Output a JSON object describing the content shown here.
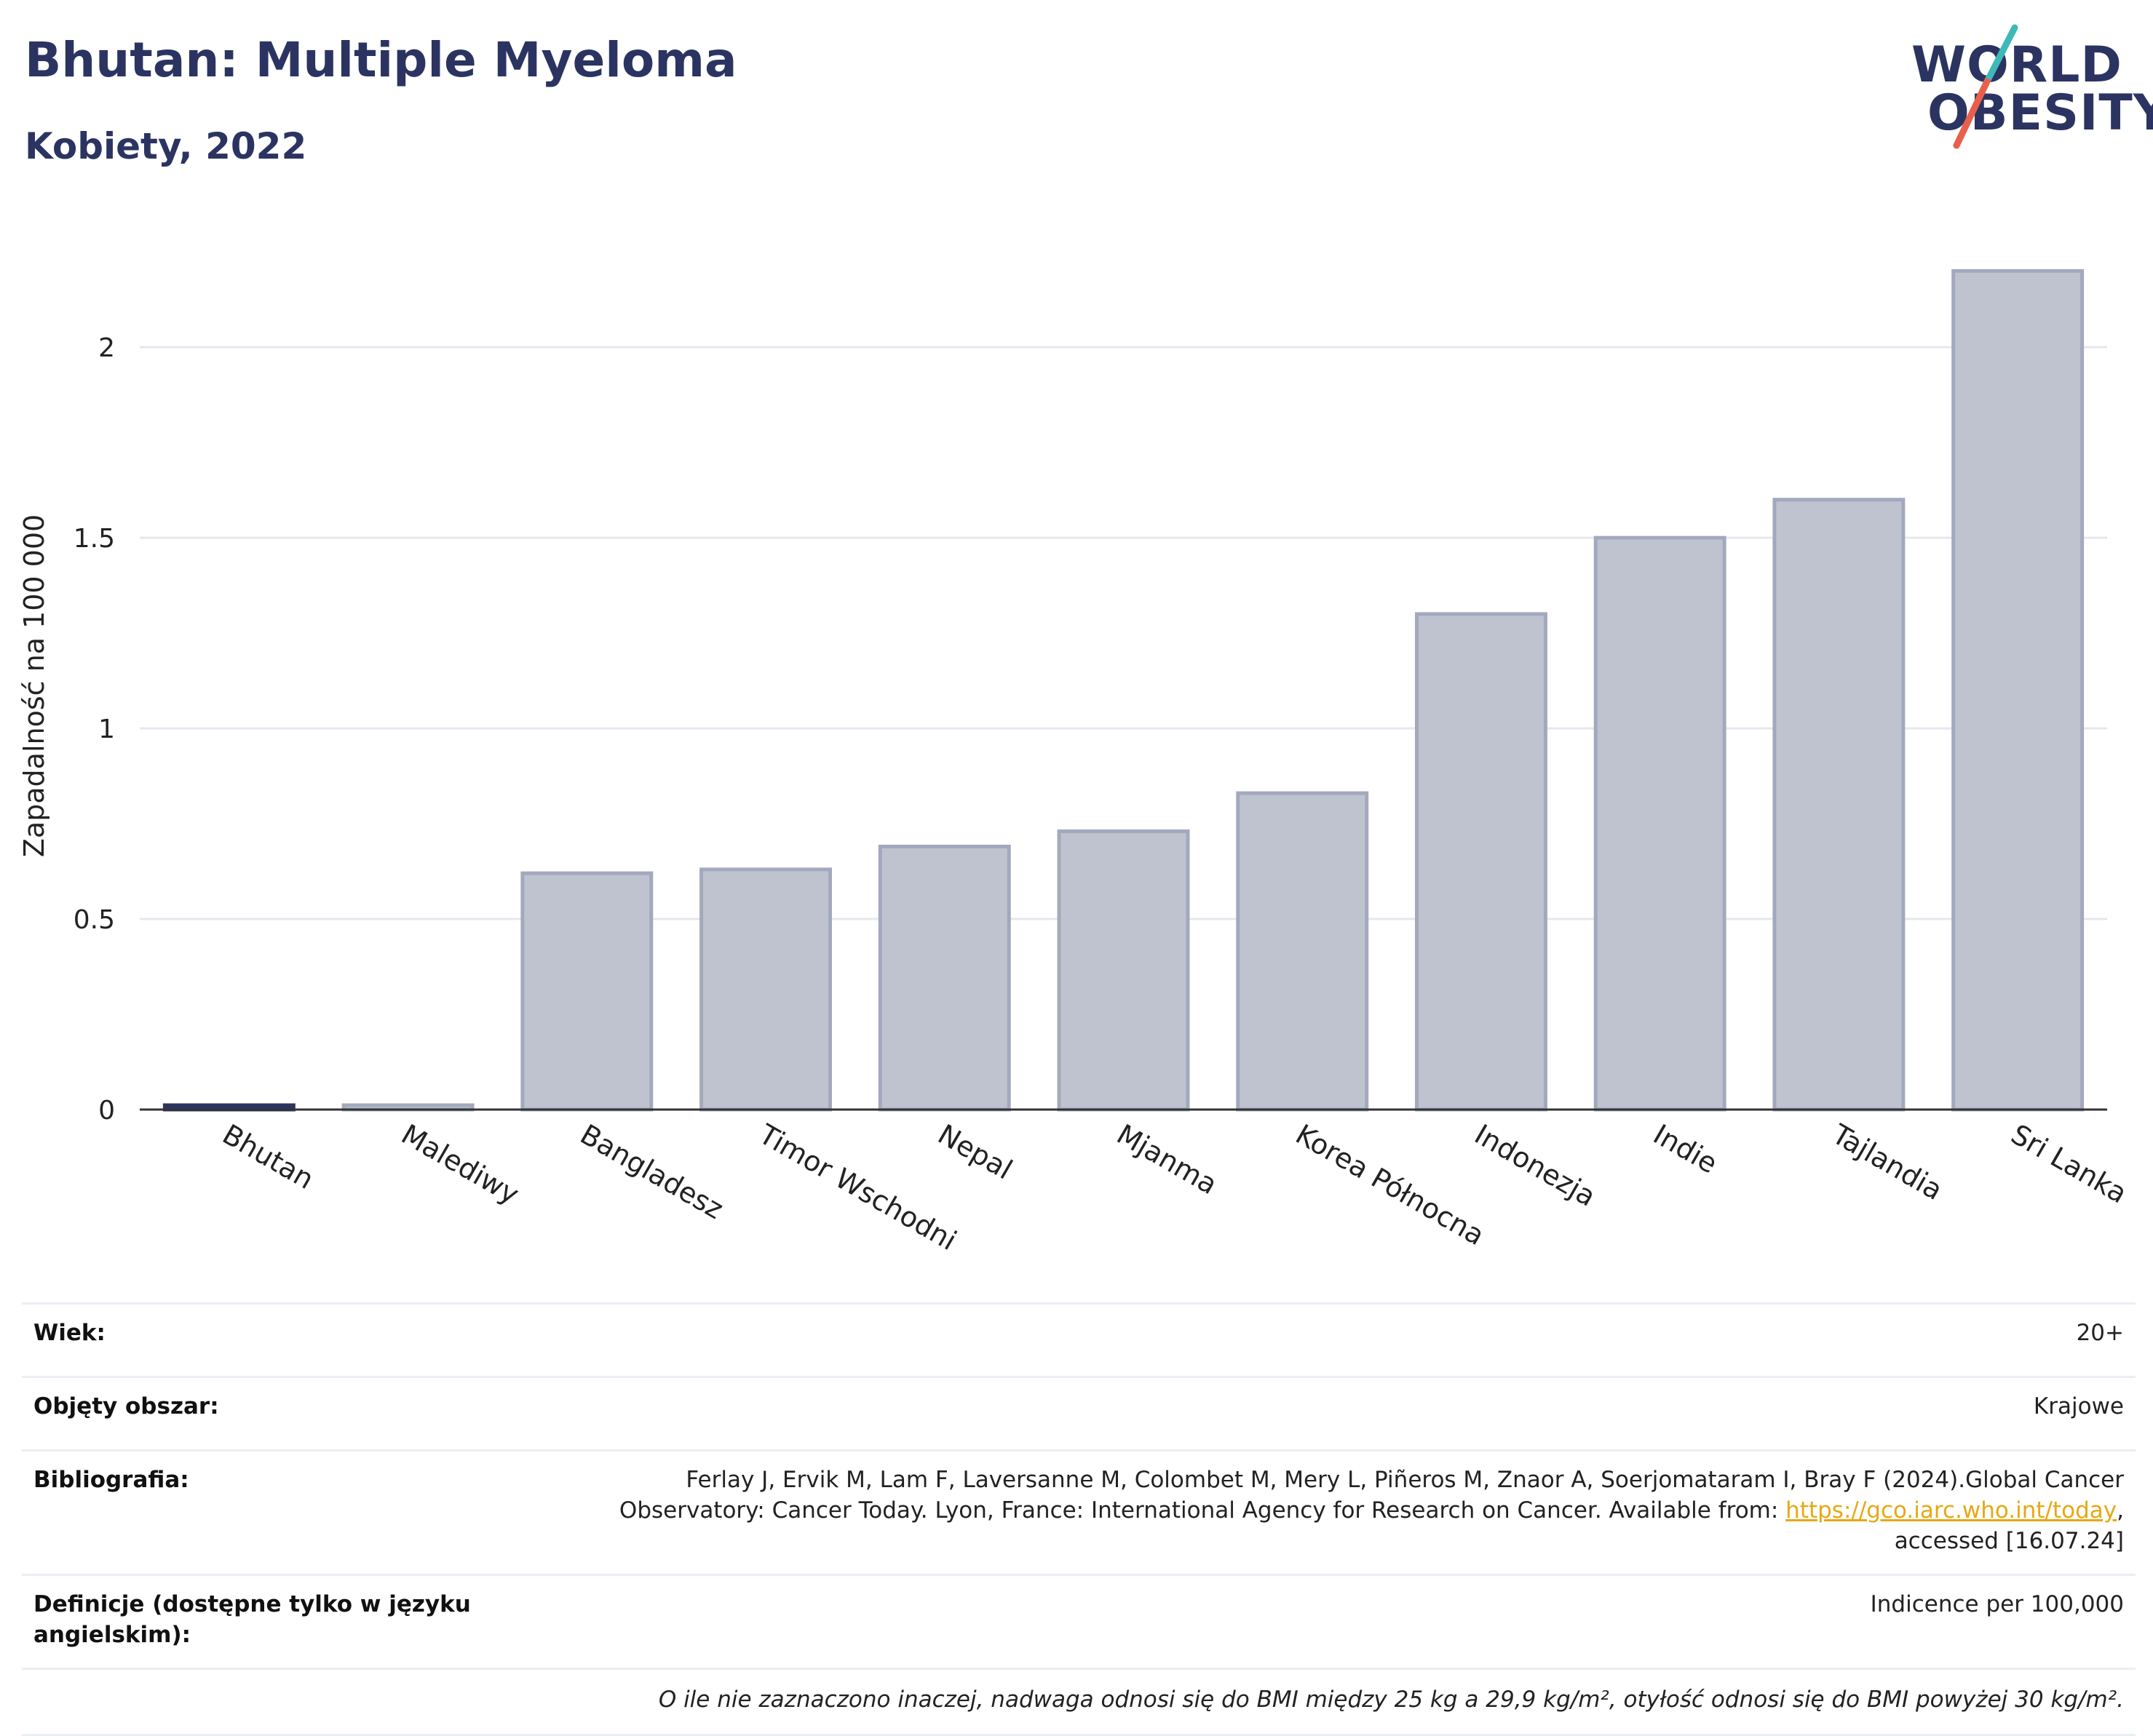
{
  "header": {
    "title": "Bhutan: Multiple Myeloma",
    "subtitle": "Kobiety, 2022"
  },
  "logo": {
    "line1": "WORLD",
    "line2": "OBESITY",
    "colors": {
      "text": "#2b3461",
      "slash_top": "#3fb8b8",
      "slash_bottom": "#e8604c"
    }
  },
  "colors": {
    "bar_fill": "#bfc3d0",
    "bar_stroke": "#a3a9bd",
    "highlight": "#2b3461",
    "grid": "#e6e8ef",
    "axis": "#333333"
  },
  "chart_data": {
    "type": "bar",
    "categories": [
      "Bhutan",
      "Malediwy",
      "Bangladesz",
      "Timor Wschodni",
      "Nepal",
      "Mjanma",
      "Korea Północna",
      "Indonezja",
      "Indie",
      "Tajlandia",
      "Sri Lanka"
    ],
    "values": [
      0.01,
      0.0,
      0.62,
      0.63,
      0.69,
      0.73,
      0.83,
      1.3,
      1.5,
      1.6,
      2.2
    ],
    "highlight": "Bhutan",
    "xlabel": "",
    "ylabel": "Zapadalność na 100 000",
    "ylim": [
      0,
      2.3
    ],
    "yticks": [
      0,
      0.5,
      1,
      1.5,
      2
    ],
    "ytick_labels": [
      "0",
      "0.5",
      "1",
      "1.5",
      "2"
    ],
    "grid": true,
    "legend": "none"
  },
  "meta": {
    "age": {
      "label": "Wiek:",
      "value": "20+"
    },
    "coverage": {
      "label": "Objęty obszar:",
      "value": "Krajowe"
    },
    "bibliography": {
      "label": "Bibliografia:",
      "line1": "Ferlay J, Ervik M, Lam F, Laversanne M, Colombet M, Mery L, Piñeros M, Znaor A, Soerjomataram I, Bray F (2024).Global Cancer",
      "line2": "Observatory: Cancer Today. Lyon, France: International Agency for Research on Cancer. Available from: ",
      "link": "https://gco.iarc.who.int/today",
      "after_link": ",",
      "line3": "accessed [16.07.24]"
    },
    "definitions": {
      "label_line1": "Definicje (dostępne tylko w języku",
      "label_line2": "angielskim):",
      "value": "Indicence per 100,000"
    },
    "note": "O ile nie zaznaczono inaczej, nadwaga odnosi się do BMI między 25 kg a 29,9 kg/m², otyłość odnosi się do BMI powyżej 30 kg/m²."
  }
}
